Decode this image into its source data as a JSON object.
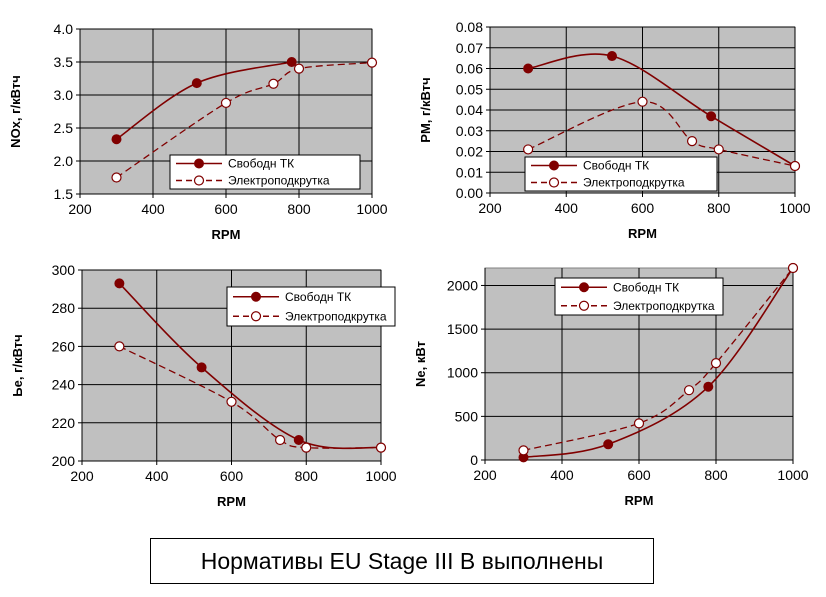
{
  "caption": "Нормативы EU Stage III B выполнены",
  "colors": {
    "series": "#800000",
    "plot_bg": "#c0c0c0",
    "grid": "#000000"
  },
  "chart_data": [
    {
      "type": "line",
      "title": "",
      "xlabel": "RPM",
      "ylabel": "NOx, г/кВтч",
      "xlim": [
        200,
        1000
      ],
      "xticks": [
        200,
        400,
        600,
        800,
        1000
      ],
      "ylim": [
        1.5,
        4.0
      ],
      "yticks": [
        "1.5",
        "2.0",
        "2.5",
        "3.0",
        "3.5",
        "4.0"
      ],
      "grid": true,
      "legend_position": "bottom-right",
      "series": [
        {
          "name": "Свободн ТК",
          "style": "solid-filled",
          "x": [
            300,
            520,
            780
          ],
          "y": [
            2.33,
            3.18,
            3.5
          ]
        },
        {
          "name": "Электроподкрутка",
          "style": "dashed-open",
          "x": [
            300,
            600,
            730,
            800,
            1000
          ],
          "y": [
            1.75,
            2.88,
            3.17,
            3.4,
            3.49
          ]
        }
      ]
    },
    {
      "type": "line",
      "title": "",
      "xlabel": "RPM",
      "ylabel": "PM, г/кВтч",
      "xlim": [
        200,
        1000
      ],
      "xticks": [
        200,
        400,
        600,
        800,
        1000
      ],
      "ylim": [
        0,
        0.08
      ],
      "yticks": [
        "0.00",
        "0.01",
        "0.02",
        "0.03",
        "0.04",
        "0.05",
        "0.06",
        "0.07",
        "0.08"
      ],
      "grid": true,
      "legend_position": "bottom-right",
      "series": [
        {
          "name": "Свободн ТК",
          "style": "solid-filled",
          "x": [
            300,
            520,
            780,
            1000
          ],
          "y": [
            0.06,
            0.066,
            0.037,
            0.013
          ]
        },
        {
          "name": "Электроподкрутка",
          "style": "dashed-open",
          "x": [
            300,
            600,
            730,
            800,
            1000
          ],
          "y": [
            0.021,
            0.044,
            0.025,
            0.021,
            0.013
          ]
        }
      ]
    },
    {
      "type": "line",
      "title": "",
      "xlabel": "RPM",
      "ylabel": "Ье, г/кВтч",
      "xlim": [
        200,
        1000
      ],
      "xticks": [
        200,
        400,
        600,
        800,
        1000
      ],
      "ylim": [
        200,
        300
      ],
      "yticks": [
        "200",
        "220",
        "240",
        "260",
        "280",
        "300"
      ],
      "grid": true,
      "legend_position": "top-right",
      "series": [
        {
          "name": "Свободн ТК",
          "style": "solid-filled",
          "x": [
            300,
            520,
            780,
            1000
          ],
          "y": [
            293,
            249,
            211,
            207
          ]
        },
        {
          "name": "Электроподкрутка",
          "style": "dashed-open",
          "x": [
            300,
            600,
            730,
            800,
            1000
          ],
          "y": [
            260,
            231,
            211,
            207,
            207
          ]
        }
      ]
    },
    {
      "type": "line",
      "title": "",
      "xlabel": "RPM",
      "ylabel": "Ne, кВт",
      "xlim": [
        200,
        1000
      ],
      "xticks": [
        200,
        400,
        600,
        800,
        1000
      ],
      "ylim": [
        0,
        2200
      ],
      "yticks": [
        "0",
        "500",
        "1000",
        "1500",
        "2000"
      ],
      "grid": true,
      "legend_position": "top-left",
      "series": [
        {
          "name": "Свободн ТК",
          "style": "solid-filled",
          "x": [
            300,
            520,
            780,
            1000
          ],
          "y": [
            30,
            180,
            840,
            2200
          ]
        },
        {
          "name": "Электроподкрутка",
          "style": "dashed-open",
          "x": [
            300,
            600,
            730,
            800,
            1000
          ],
          "y": [
            110,
            420,
            800,
            1110,
            2200
          ]
        }
      ]
    }
  ]
}
